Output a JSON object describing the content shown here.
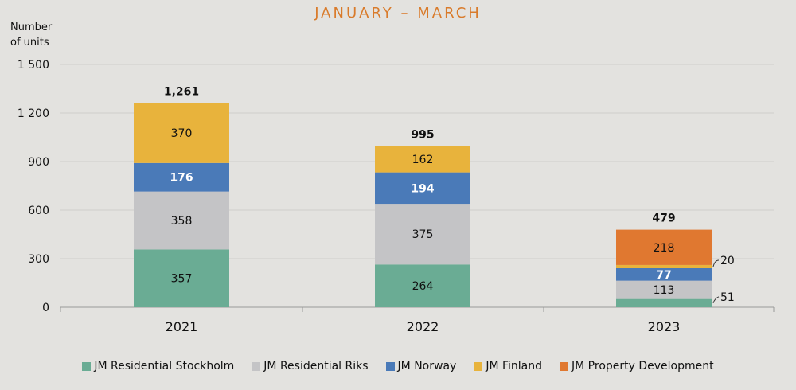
{
  "chart_data": {
    "type": "bar",
    "stacked": true,
    "title": "JANUARY – MARCH",
    "ylabel": "Number of units",
    "ylabel_lines": [
      "Number",
      "of units"
    ],
    "ylim": [
      0,
      1500
    ],
    "yticks": [
      0,
      300,
      600,
      900,
      1200,
      1500
    ],
    "ytick_labels": [
      "0",
      "300",
      "600",
      "900",
      "1 200",
      "1 500"
    ],
    "grid": true,
    "legend_position": "bottom",
    "categories": [
      "2021",
      "2022",
      "2023"
    ],
    "totals": [
      1261,
      995,
      479
    ],
    "total_labels": [
      "1,261",
      "995",
      "479"
    ],
    "series": [
      {
        "name": "JM Residential Stockholm",
        "color": "#6aac94",
        "values": [
          357,
          264,
          51
        ]
      },
      {
        "name": "JM Residential Riks",
        "color": "#c4c4c6",
        "values": [
          358,
          375,
          113
        ]
      },
      {
        "name": "JM Norway",
        "color": "#4a7ab8",
        "values": [
          176,
          194,
          77
        ]
      },
      {
        "name": "JM Finland",
        "color": "#e8b33c",
        "values": [
          370,
          162,
          20
        ]
      },
      {
        "name": "JM Property Development",
        "color": "#e07830",
        "values": [
          0,
          0,
          218
        ]
      }
    ]
  }
}
